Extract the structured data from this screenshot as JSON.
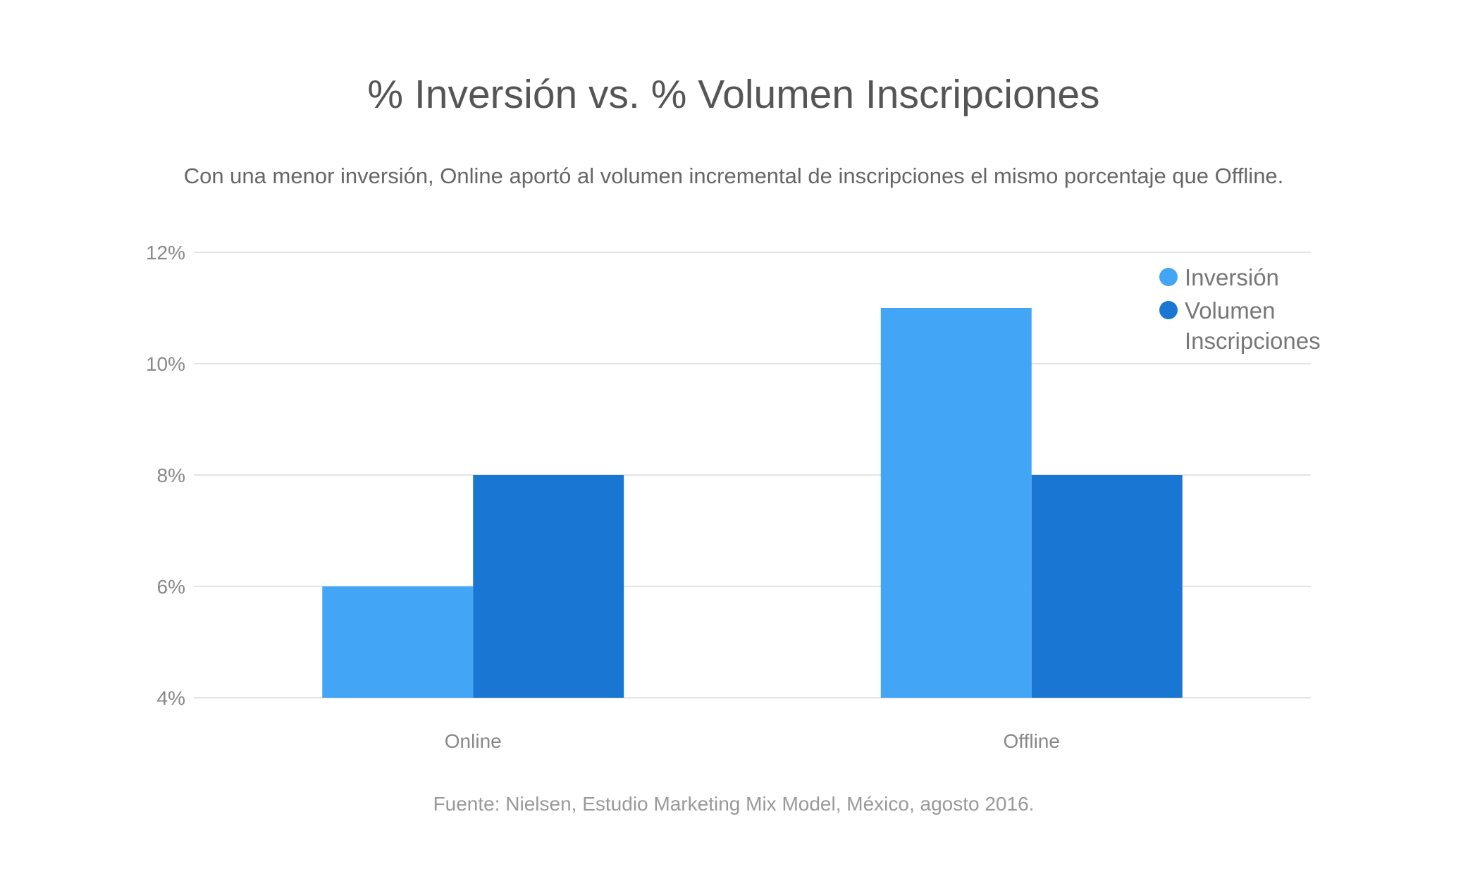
{
  "chart_data": {
    "type": "bar",
    "title": "% Inversión vs. % Volumen Inscripciones",
    "subtitle": "Con una menor inversión, Online aportó al volumen incremental de inscripciones el mismo porcentaje que Offline.",
    "source": "Fuente: Nielsen, Estudio Marketing Mix Model, México, agosto 2016.",
    "categories": [
      "Online",
      "Offline"
    ],
    "series": [
      {
        "name": "Inversión",
        "values": [
          6,
          11
        ],
        "color": "#42a5f5"
      },
      {
        "name": "Volumen Inscripciones",
        "legend_lines": [
          "Volumen",
          "Inscripciones"
        ],
        "values": [
          8,
          8
        ],
        "color": "#1976d2"
      }
    ],
    "ylim": [
      4,
      12
    ],
    "yticks": [
      4,
      6,
      8,
      10,
      12
    ],
    "ytick_labels": [
      "4%",
      "6%",
      "8%",
      "10%",
      "12%"
    ],
    "xlabel": "",
    "ylabel": "",
    "grid": true,
    "legend_position": "top-right"
  }
}
